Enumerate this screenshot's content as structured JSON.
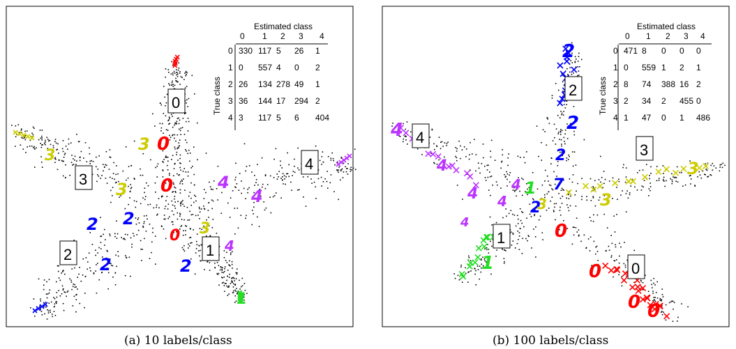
{
  "figure": {
    "panels": [
      {
        "id": "a",
        "caption": "(a) 10 labels/class",
        "confusion": {
          "title": "Estimated class",
          "ylabel": "True class",
          "cols": [
            "0",
            "1",
            "2",
            "3",
            "4"
          ],
          "rows": [
            "0",
            "1",
            "2",
            "3",
            "4"
          ],
          "cells": [
            [
              "330",
              "117",
              "5",
              "26",
              "1"
            ],
            [
              "0",
              "557",
              "4",
              "0",
              "2"
            ],
            [
              "26",
              "134",
              "278",
              "49",
              "1"
            ],
            [
              "36",
              "144",
              "17",
              "294",
              "2"
            ],
            [
              "3",
              "117",
              "5",
              "6",
              "404"
            ]
          ]
        },
        "arm_labels": [
          "0",
          "3",
          "2",
          "1",
          "4"
        ]
      },
      {
        "id": "b",
        "caption": "(b) 100 labels/class",
        "confusion": {
          "title": "Estimated class",
          "ylabel": "True class",
          "cols": [
            "0",
            "1",
            "2",
            "3",
            "4"
          ],
          "rows": [
            "0",
            "1",
            "2",
            "3",
            "4"
          ],
          "cells": [
            [
              "471",
              "8",
              "0",
              "0",
              "0"
            ],
            [
              "0",
              "559",
              "1",
              "2",
              "1"
            ],
            [
              "8",
              "74",
              "388",
              "16",
              "2"
            ],
            [
              "2",
              "34",
              "2",
              "455",
              "0"
            ],
            [
              "1",
              "47",
              "0",
              "1",
              "486"
            ]
          ]
        },
        "arm_labels": [
          "2",
          "4",
          "3",
          "1",
          "0"
        ]
      }
    ],
    "colors": {
      "class0": "#ff0000",
      "class1": "#22dd22",
      "class2": "#0000ff",
      "class3": "#cccc00",
      "class4": "#bb33ff",
      "points": "#000000"
    }
  },
  "chart_data": [
    {
      "type": "scatter",
      "title": "",
      "caption": "(a) 10 labels/class",
      "series": [
        {
          "name": "0",
          "arm": "top"
        },
        {
          "name": "1",
          "arm": "bottom-right"
        },
        {
          "name": "2",
          "arm": "bottom-left"
        },
        {
          "name": "3",
          "arm": "upper-left"
        },
        {
          "name": "4",
          "arm": "right"
        }
      ],
      "table": {
        "xlabel": "Estimated class",
        "ylabel": "True class",
        "values": [
          [
            330,
            117,
            5,
            26,
            1
          ],
          [
            0,
            557,
            4,
            0,
            2
          ],
          [
            26,
            134,
            278,
            49,
            1
          ],
          [
            36,
            144,
            17,
            294,
            2
          ],
          [
            3,
            117,
            5,
            6,
            404
          ]
        ]
      }
    },
    {
      "type": "scatter",
      "title": "",
      "caption": "(b) 100 labels/class",
      "series": [
        {
          "name": "0",
          "arm": "bottom-right"
        },
        {
          "name": "1",
          "arm": "bottom-left"
        },
        {
          "name": "2",
          "arm": "top"
        },
        {
          "name": "3",
          "arm": "right"
        },
        {
          "name": "4",
          "arm": "upper-left"
        }
      ],
      "table": {
        "xlabel": "Estimated class",
        "ylabel": "True class",
        "values": [
          [
            471,
            8,
            0,
            0,
            0
          ],
          [
            0,
            559,
            1,
            2,
            1
          ],
          [
            8,
            74,
            388,
            16,
            2
          ],
          [
            2,
            34,
            2,
            455,
            0
          ],
          [
            1,
            47,
            0,
            1,
            486
          ]
        ]
      }
    }
  ]
}
